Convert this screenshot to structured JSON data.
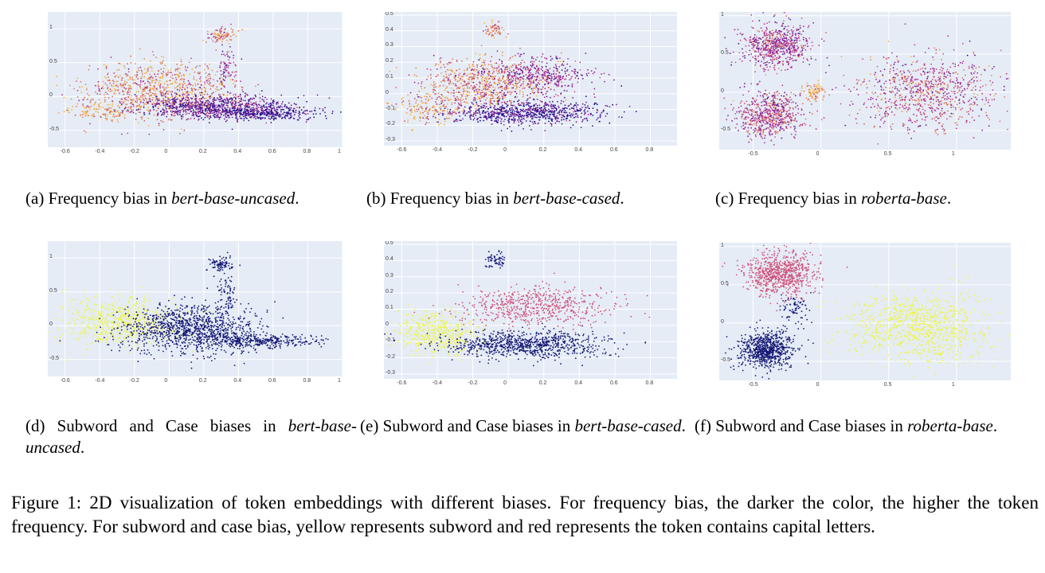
{
  "figure": {
    "caption": {
      "label": "Figure 1:",
      "text": "2D visualization of token embeddings with different biases. For frequency bias, the darker the color, the higher the token frequency. For subword and case bias, yellow represents subword and red represents the token contains capital letters."
    },
    "colors": {
      "plot_background": "#e5ecf6",
      "grid": "#ffffff",
      "frequency_high": "#1a0b8c",
      "frequency_mid": "#b5289b",
      "frequency_low": "#fdb22f",
      "subword": "#eef542",
      "capital": "#d0507a",
      "regular": "#141774"
    },
    "panels": [
      {
        "id": "a",
        "label": "(a)",
        "text": "Frequency bias in",
        "model": "bert-base-uncased",
        "end": ".",
        "chart_data": {
          "type": "scatter",
          "color_mode": "frequency",
          "xlim": [
            -0.7,
            1.0
          ],
          "ylim": [
            -0.75,
            1.25
          ],
          "xticks": [
            "-0.6",
            "-0.4",
            "-0.2",
            "0",
            "0.2",
            "0.4",
            "0.6",
            "0.8",
            "1"
          ],
          "yticks": [
            "-0.5",
            "0",
            "0.5",
            "1"
          ],
          "clusters": [
            {
              "cx": -0.05,
              "cy": 0.1,
              "sx": 0.22,
              "sy": 0.22,
              "n": 900,
              "freq": 0.2
            },
            {
              "cx": 0.25,
              "cy": -0.15,
              "sx": 0.22,
              "sy": 0.09,
              "n": 800,
              "freq": 0.75
            },
            {
              "cx": 0.55,
              "cy": -0.25,
              "sx": 0.17,
              "sy": 0.05,
              "n": 350,
              "freq": 0.95
            },
            {
              "cx": 0.3,
              "cy": 0.9,
              "sx": 0.04,
              "sy": 0.06,
              "n": 90,
              "freq": 0.2
            },
            {
              "cx": 0.33,
              "cy": 0.45,
              "sx": 0.03,
              "sy": 0.15,
              "n": 70,
              "freq": 0.55
            },
            {
              "cx": -0.4,
              "cy": -0.2,
              "sx": 0.1,
              "sy": 0.07,
              "n": 120,
              "freq": 0.1
            }
          ]
        }
      },
      {
        "id": "b",
        "label": "(b)",
        "text": "Frequency bias in",
        "model": "bert-base-cased",
        "end": ".",
        "chart_data": {
          "type": "scatter",
          "color_mode": "frequency",
          "xlim": [
            -0.7,
            0.95
          ],
          "ylim": [
            -0.33,
            0.52
          ],
          "xticks": [
            "-0.6",
            "-0.4",
            "-0.2",
            "0",
            "0.2",
            "0.4",
            "0.6",
            "0.8"
          ],
          "yticks": [
            "-0.3",
            "-0.2",
            "-0.1",
            "0",
            "0.1",
            "0.2",
            "0.3",
            "0.4",
            "0.5"
          ],
          "clusters": [
            {
              "cx": -0.15,
              "cy": 0.05,
              "sx": 0.18,
              "sy": 0.08,
              "n": 700,
              "freq": 0.2
            },
            {
              "cx": 0.15,
              "cy": 0.12,
              "sx": 0.18,
              "sy": 0.06,
              "n": 450,
              "freq": 0.6
            },
            {
              "cx": 0.1,
              "cy": -0.12,
              "sx": 0.22,
              "sy": 0.04,
              "n": 750,
              "freq": 0.85
            },
            {
              "cx": -0.45,
              "cy": -0.1,
              "sx": 0.08,
              "sy": 0.05,
              "n": 150,
              "freq": 0.1
            },
            {
              "cx": -0.08,
              "cy": 0.4,
              "sx": 0.03,
              "sy": 0.03,
              "n": 60,
              "freq": 0.2
            }
          ]
        }
      },
      {
        "id": "c",
        "label": "(c)",
        "text": "Frequency bias in",
        "model": "roberta-base",
        "end": ".",
        "chart_data": {
          "type": "scatter",
          "color_mode": "frequency",
          "xlim": [
            -0.75,
            1.4
          ],
          "ylim": [
            -0.75,
            1.05
          ],
          "xticks": [
            "-0.5",
            "0",
            "0.5",
            "1"
          ],
          "yticks": [
            "-0.5",
            "0",
            "0.5",
            "1"
          ],
          "clusters": [
            {
              "cx": -0.33,
              "cy": 0.6,
              "sx": 0.13,
              "sy": 0.15,
              "n": 650,
              "freq": 0.5
            },
            {
              "cx": -0.38,
              "cy": -0.3,
              "sx": 0.12,
              "sy": 0.16,
              "n": 650,
              "freq": 0.45
            },
            {
              "cx": 0.8,
              "cy": 0.0,
              "sx": 0.25,
              "sy": 0.25,
              "n": 850,
              "freq": 0.4
            },
            {
              "cx": -0.05,
              "cy": 0.0,
              "sx": 0.05,
              "sy": 0.06,
              "n": 80,
              "freq": 0.05
            }
          ]
        }
      },
      {
        "id": "d",
        "label": "(d)",
        "text": "Subword and Case biases in",
        "model": "bert-base-uncased",
        "end": ".",
        "chart_data": {
          "type": "scatter",
          "color_mode": "category",
          "xlim": [
            -0.7,
            1.0
          ],
          "ylim": [
            -0.75,
            1.25
          ],
          "xticks": [
            "-0.6",
            "-0.4",
            "-0.2",
            "0",
            "0.2",
            "0.4",
            "0.6",
            "0.8",
            "1"
          ],
          "yticks": [
            "-0.5",
            "0",
            "0.5",
            "1"
          ],
          "clusters": [
            {
              "cx": -0.28,
              "cy": 0.05,
              "sx": 0.17,
              "sy": 0.18,
              "n": 650,
              "cat": "subword"
            },
            {
              "cx": 0.12,
              "cy": -0.05,
              "sx": 0.2,
              "sy": 0.18,
              "n": 1100,
              "cat": "regular"
            },
            {
              "cx": 0.5,
              "cy": -0.23,
              "sx": 0.17,
              "sy": 0.05,
              "n": 350,
              "cat": "regular"
            },
            {
              "cx": 0.3,
              "cy": 0.9,
              "sx": 0.04,
              "sy": 0.06,
              "n": 90,
              "cat": "regular"
            },
            {
              "cx": 0.33,
              "cy": 0.45,
              "sx": 0.03,
              "sy": 0.15,
              "n": 70,
              "cat": "regular"
            }
          ]
        }
      },
      {
        "id": "e",
        "label": "(e)",
        "text": "Subword and Case biases in",
        "model": "bert-base-cased",
        "end": ".",
        "chart_data": {
          "type": "scatter",
          "color_mode": "category",
          "xlim": [
            -0.7,
            0.95
          ],
          "ylim": [
            -0.33,
            0.52
          ],
          "xticks": [
            "-0.6",
            "-0.4",
            "-0.2",
            "0",
            "0.2",
            "0.4",
            "0.6",
            "0.8"
          ],
          "yticks": [
            "-0.3",
            "-0.2",
            "-0.1",
            "0",
            "0.1",
            "0.2",
            "0.3",
            "0.4",
            "0.5"
          ],
          "clusters": [
            {
              "cx": -0.4,
              "cy": -0.05,
              "sx": 0.12,
              "sy": 0.07,
              "n": 450,
              "cat": "subword"
            },
            {
              "cx": 0.15,
              "cy": 0.12,
              "sx": 0.22,
              "sy": 0.06,
              "n": 600,
              "cat": "capital"
            },
            {
              "cx": 0.1,
              "cy": -0.12,
              "sx": 0.22,
              "sy": 0.04,
              "n": 850,
              "cat": "regular"
            },
            {
              "cx": -0.08,
              "cy": 0.4,
              "sx": 0.03,
              "sy": 0.03,
              "n": 60,
              "cat": "regular"
            }
          ]
        }
      },
      {
        "id": "f",
        "label": "(f)",
        "text": "Subword and Case biases in",
        "model": "roberta-base",
        "end": ".",
        "chart_data": {
          "type": "scatter",
          "color_mode": "category",
          "xlim": [
            -0.75,
            1.4
          ],
          "ylim": [
            -0.75,
            1.05
          ],
          "xticks": [
            "-0.5",
            "0",
            "0.5",
            "1"
          ],
          "yticks": [
            "-0.5",
            "0",
            "0.5",
            "1"
          ],
          "clusters": [
            {
              "cx": -0.3,
              "cy": 0.65,
              "sx": 0.13,
              "sy": 0.14,
              "n": 750,
              "cat": "capital"
            },
            {
              "cx": -0.4,
              "cy": -0.35,
              "sx": 0.1,
              "sy": 0.12,
              "n": 750,
              "cat": "regular"
            },
            {
              "cx": 0.72,
              "cy": -0.05,
              "sx": 0.25,
              "sy": 0.22,
              "n": 950,
              "cat": "subword"
            },
            {
              "cx": -0.2,
              "cy": 0.2,
              "sx": 0.06,
              "sy": 0.1,
              "n": 80,
              "cat": "regular"
            }
          ]
        }
      }
    ]
  }
}
